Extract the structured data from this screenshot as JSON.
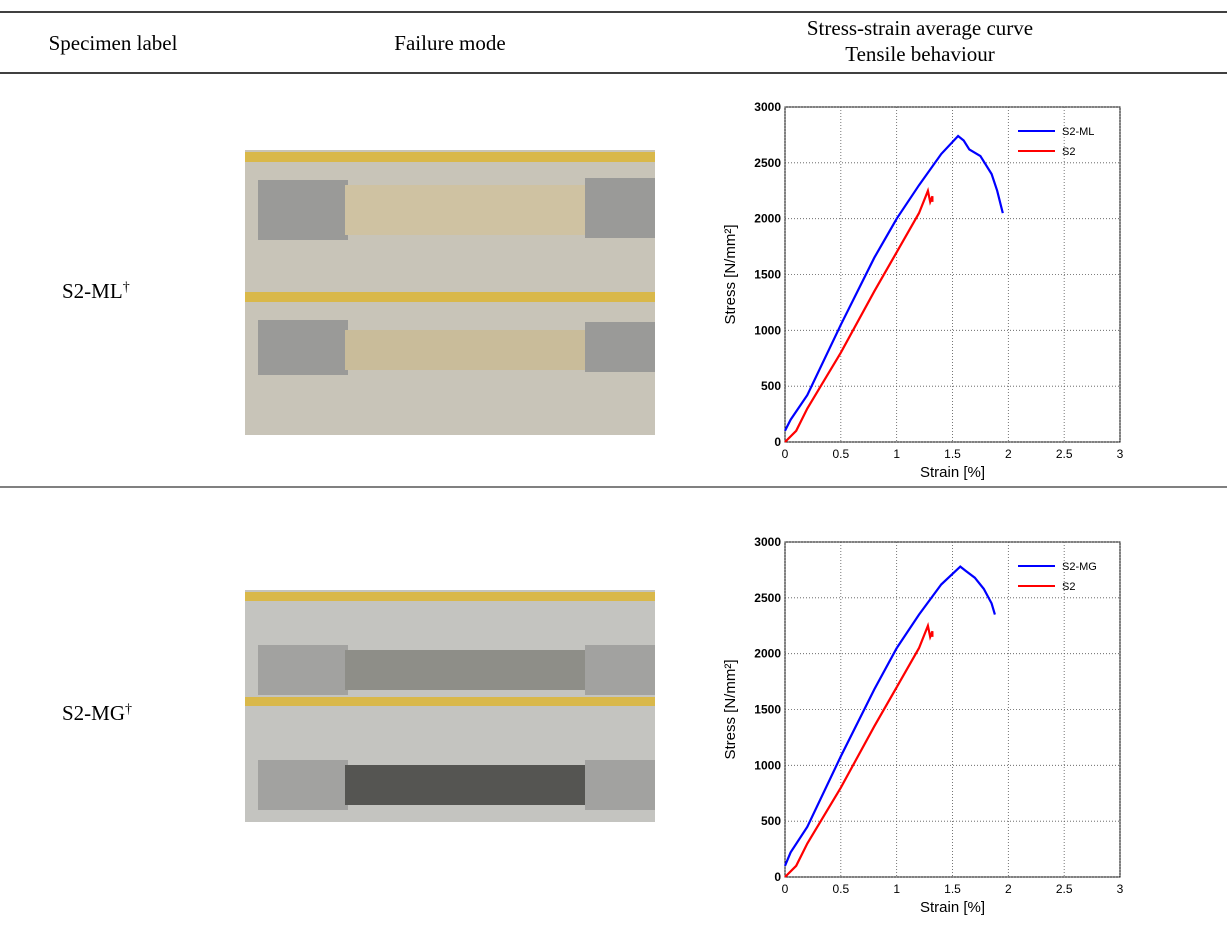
{
  "table": {
    "headers": [
      "Specimen label",
      "Failure mode",
      "Stress-strain average curve",
      "Tensile behaviour"
    ],
    "rows": [
      {
        "label": "S2-ML",
        "note": "†",
        "chart": {
          "type": "line",
          "xlabel": "Strain [%]",
          "ylabel": "Stress [N/mm²]",
          "xlim": [
            0,
            3
          ],
          "ylim": [
            0,
            3000
          ],
          "xticks": [
            0,
            0.5,
            1,
            1.5,
            2,
            2.5,
            3
          ],
          "yticks": [
            0,
            500,
            1000,
            1500,
            2000,
            2500,
            3000
          ],
          "grid": true,
          "legend": "upper right",
          "series": [
            {
              "name": "S2-ML",
              "color": "#0000ff",
              "x": [
                0,
                0.05,
                0.2,
                0.5,
                0.8,
                1.0,
                1.2,
                1.4,
                1.55,
                1.6,
                1.65,
                1.75,
                1.85,
                1.9,
                1.95
              ],
              "values": [
                100,
                200,
                420,
                1050,
                1650,
                2000,
                2300,
                2580,
                2740,
                2700,
                2620,
                2560,
                2400,
                2250,
                2050
              ]
            },
            {
              "name": "S2",
              "color": "#ff0000",
              "x": [
                0,
                0.1,
                0.2,
                0.5,
                0.8,
                1.0,
                1.2,
                1.28,
                1.3,
                1.32,
                1.32
              ],
              "values": [
                0,
                100,
                300,
                800,
                1350,
                1700,
                2050,
                2250,
                2150,
                2200,
                2150
              ]
            }
          ]
        }
      },
      {
        "label": "S2-MG",
        "note": "†",
        "chart": {
          "type": "line",
          "xlabel": "Strain [%]",
          "ylabel": "Stress [N/mm²]",
          "xlim": [
            0,
            3
          ],
          "ylim": [
            0,
            3000
          ],
          "xticks": [
            0,
            0.5,
            1,
            1.5,
            2,
            2.5,
            3
          ],
          "yticks": [
            0,
            500,
            1000,
            1500,
            2000,
            2500,
            3000
          ],
          "grid": true,
          "legend": "upper right",
          "series": [
            {
              "name": "S2-MG",
              "color": "#0000ff",
              "x": [
                0,
                0.05,
                0.2,
                0.5,
                0.8,
                1.0,
                1.2,
                1.4,
                1.57,
                1.62,
                1.7,
                1.78,
                1.85,
                1.88
              ],
              "values": [
                100,
                220,
                450,
                1080,
                1680,
                2050,
                2350,
                2620,
                2780,
                2740,
                2680,
                2580,
                2450,
                2350
              ]
            },
            {
              "name": "S2",
              "color": "#ff0000",
              "x": [
                0,
                0.1,
                0.2,
                0.5,
                0.8,
                1.0,
                1.2,
                1.28,
                1.3,
                1.32,
                1.32
              ],
              "values": [
                0,
                100,
                300,
                800,
                1350,
                1700,
                2050,
                2250,
                2150,
                2200,
                2150
              ]
            }
          ]
        }
      }
    ]
  }
}
